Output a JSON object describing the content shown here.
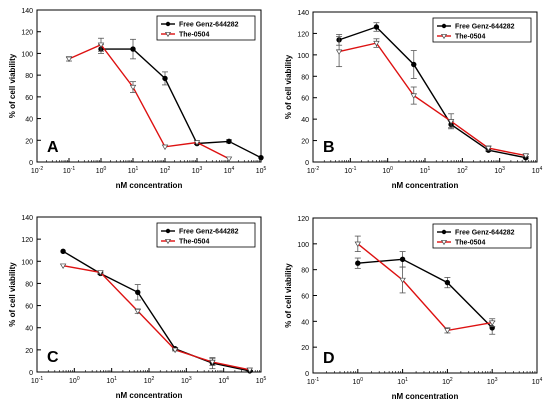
{
  "figure": {
    "panels": [
      "A",
      "B",
      "C",
      "D"
    ]
  },
  "chart_data": [
    {
      "panel_label": "A",
      "type": "line",
      "xscale": "log",
      "xlim": [
        0.01,
        100000
      ],
      "x_ticks": [
        0.01,
        0.1,
        1,
        10,
        100,
        1000,
        10000,
        100000
      ],
      "x_tick_labels": [
        "10-2",
        "10-1",
        "100",
        "101",
        "102",
        "103",
        "104",
        "105"
      ],
      "ylim": [
        0,
        140
      ],
      "y_ticks": [
        0,
        20,
        40,
        60,
        80,
        100,
        120,
        140
      ],
      "xlabel": "nM concentration",
      "ylabel": "% of cell viability",
      "legend_position": "top-right",
      "series": [
        {
          "name": "Free Genz-644282",
          "color": "#000000",
          "marker": "filled-circle",
          "x": [
            1,
            10,
            100,
            1000,
            10000,
            100000
          ],
          "y": [
            104,
            104,
            77,
            17,
            19,
            4
          ],
          "err": [
            4,
            9,
            6,
            1,
            1.5,
            0
          ]
        },
        {
          "name": "The-0504",
          "color": "#dd1111",
          "marker": "open-triangle-down",
          "x": [
            0.1,
            1,
            10,
            100,
            1000,
            10000
          ],
          "y": [
            95,
            108,
            69,
            14,
            18,
            3
          ],
          "err": [
            2,
            6,
            5,
            0,
            0,
            0
          ]
        }
      ]
    },
    {
      "panel_label": "B",
      "type": "line",
      "xscale": "log",
      "xlim": [
        0.01,
        10000
      ],
      "x_ticks": [
        0.01,
        0.1,
        1,
        10,
        100,
        1000,
        10000
      ],
      "x_tick_labels": [
        "10-2",
        "10-1",
        "100",
        "101",
        "102",
        "103",
        "104"
      ],
      "ylim": [
        0,
        140
      ],
      "y_ticks": [
        0,
        20,
        40,
        60,
        80,
        100,
        120,
        140
      ],
      "xlabel": "nM concentration",
      "ylabel": "% of cell viability",
      "legend_position": "top-right",
      "series": [
        {
          "name": "Free Genz-644282",
          "color": "#000000",
          "marker": "filled-circle",
          "x": [
            0.05,
            0.5,
            5,
            50,
            500,
            5000
          ],
          "y": [
            114,
            126,
            91,
            35,
            11,
            4
          ],
          "err": [
            5,
            4,
            13,
            3,
            1,
            1
          ]
        },
        {
          "name": "The-0504",
          "color": "#dd1111",
          "marker": "open-triangle-down",
          "x": [
            0.05,
            0.5,
            5,
            50,
            500,
            5000
          ],
          "y": [
            103,
            111,
            62,
            38,
            13,
            6
          ],
          "err": [
            14,
            4,
            8,
            7,
            2,
            1
          ]
        }
      ]
    },
    {
      "panel_label": "C",
      "type": "line",
      "xscale": "log",
      "xlim": [
        0.1,
        100000
      ],
      "x_ticks": [
        0.1,
        1,
        10,
        100,
        1000,
        10000,
        100000
      ],
      "x_tick_labels": [
        "10-1",
        "100",
        "101",
        "102",
        "103",
        "104",
        "105"
      ],
      "ylim": [
        0,
        140
      ],
      "y_ticks": [
        0,
        20,
        40,
        60,
        80,
        100,
        120,
        140
      ],
      "xlabel": "nM concentration",
      "ylabel": "% of cell viability",
      "legend_position": "top-right",
      "series": [
        {
          "name": "Free Genz-644282",
          "color": "#000000",
          "marker": "filled-circle",
          "x": [
            0.5,
            5,
            50,
            500,
            5000,
            50000
          ],
          "y": [
            109,
            89,
            72,
            21,
            8,
            1
          ],
          "err": [
            0,
            1,
            7,
            1,
            5,
            0
          ]
        },
        {
          "name": "The-0504",
          "color": "#dd1111",
          "marker": "open-triangle-down",
          "x": [
            0.5,
            5,
            50,
            500,
            5000,
            50000
          ],
          "y": [
            96,
            90,
            55,
            20,
            9,
            2
          ],
          "err": [
            0,
            1,
            2,
            1,
            3,
            0
          ]
        }
      ]
    },
    {
      "panel_label": "D",
      "type": "line",
      "xscale": "log",
      "xlim": [
        0.1,
        10000
      ],
      "x_ticks": [
        0.1,
        1,
        10,
        100,
        1000,
        10000
      ],
      "x_tick_labels": [
        "10-1",
        "100",
        "101",
        "102",
        "103",
        "104"
      ],
      "ylim": [
        0,
        120
      ],
      "y_ticks": [
        0,
        20,
        40,
        60,
        80,
        100,
        120
      ],
      "xlabel": "nM concentration",
      "ylabel": "% of cell viability",
      "legend_position": "top-right",
      "series": [
        {
          "name": "Free Genz-644282",
          "color": "#000000",
          "marker": "filled-circle",
          "x": [
            1,
            10,
            100,
            1000
          ],
          "y": [
            85,
            88,
            70,
            35
          ],
          "err": [
            4,
            6,
            4,
            5
          ]
        },
        {
          "name": "The-0504",
          "color": "#dd1111",
          "marker": "open-triangle-down",
          "x": [
            1,
            10,
            100,
            1000
          ],
          "y": [
            100,
            72,
            33,
            39
          ],
          "err": [
            6,
            10,
            2,
            3
          ]
        }
      ]
    }
  ]
}
